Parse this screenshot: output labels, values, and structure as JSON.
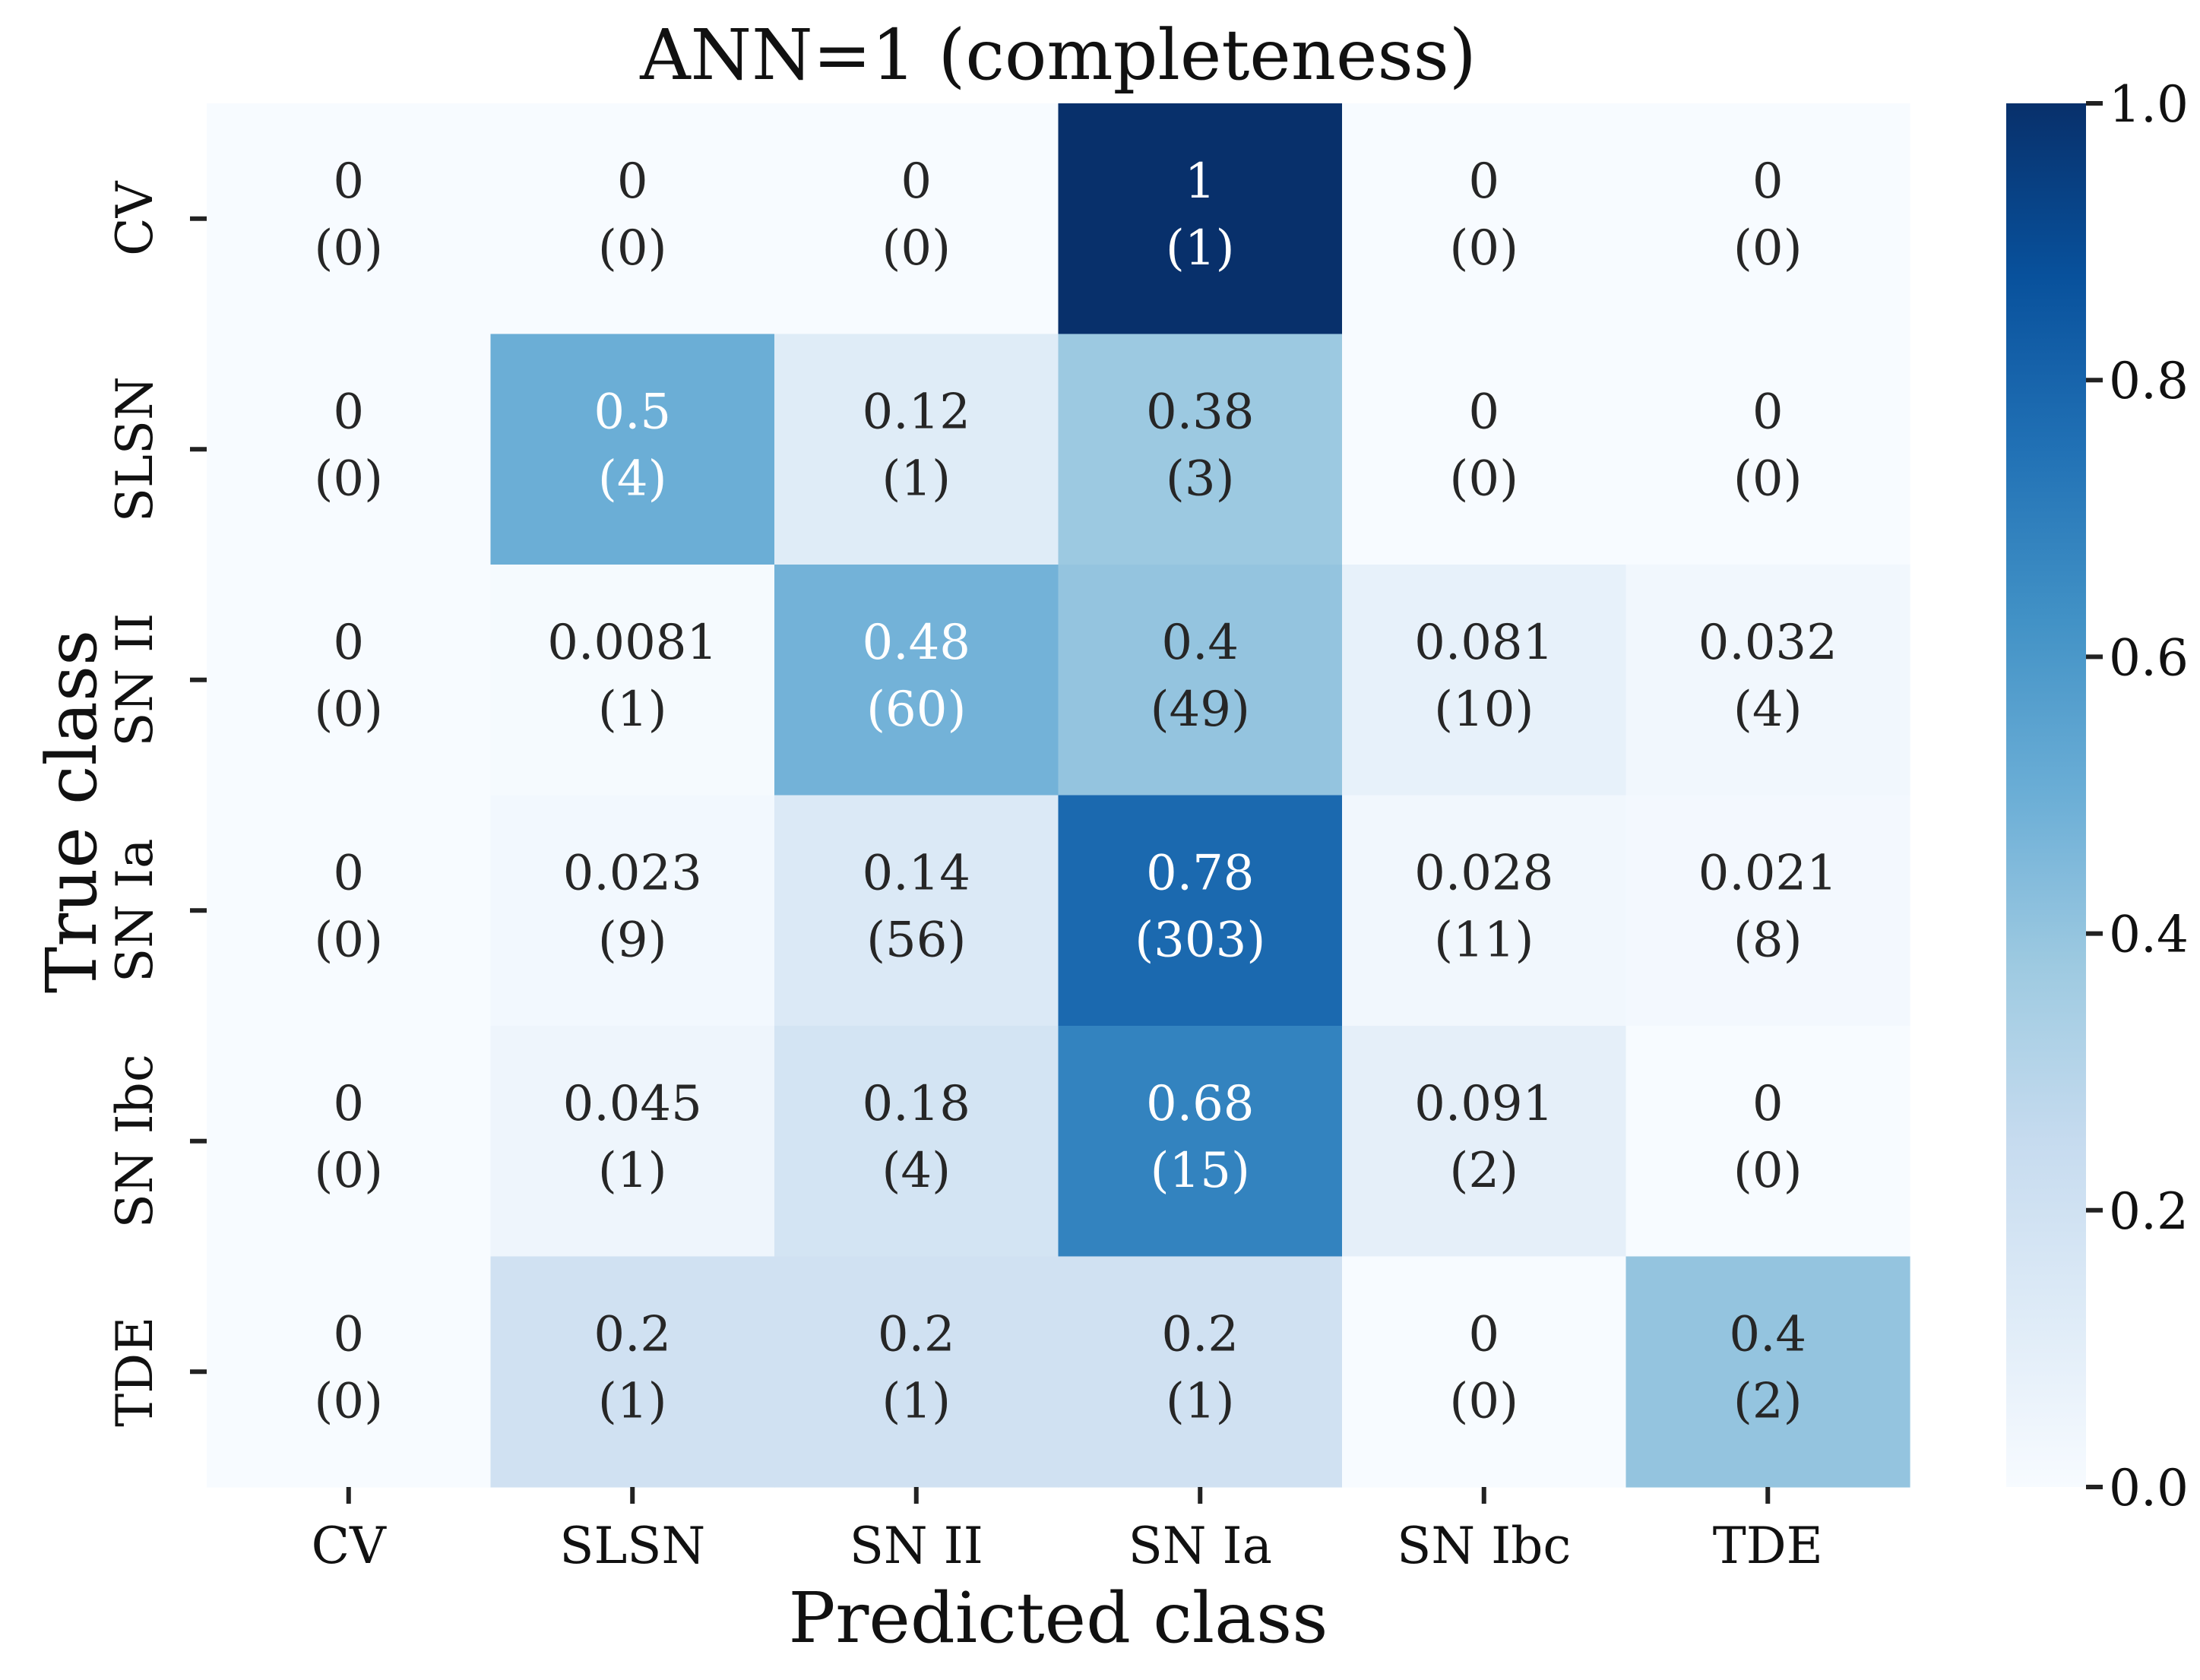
{
  "chart_data": {
    "type": "heatmap",
    "title": "ANN=1 (completeness)",
    "xlabel": "Predicted class",
    "ylabel": "True class",
    "x_categories": [
      "CV",
      "SLSN",
      "SN II",
      "SN Ia",
      "SN Ibc",
      "TDE"
    ],
    "y_categories": [
      "CV",
      "SLSN",
      "SN II",
      "SN Ia",
      "SN Ibc",
      "TDE"
    ],
    "values": [
      [
        0,
        0,
        0,
        1,
        0,
        0
      ],
      [
        0,
        0.5,
        0.12,
        0.38,
        0,
        0
      ],
      [
        0,
        0.0081,
        0.48,
        0.4,
        0.081,
        0.032
      ],
      [
        0,
        0.023,
        0.14,
        0.78,
        0.028,
        0.021
      ],
      [
        0,
        0.045,
        0.18,
        0.68,
        0.091,
        0
      ],
      [
        0,
        0.2,
        0.2,
        0.2,
        0,
        0.4
      ]
    ],
    "value_labels": [
      [
        "0",
        "0",
        "0",
        "1",
        "0",
        "0"
      ],
      [
        "0",
        "0.5",
        "0.12",
        "0.38",
        "0",
        "0"
      ],
      [
        "0",
        "0.0081",
        "0.48",
        "0.4",
        "0.081",
        "0.032"
      ],
      [
        "0",
        "0.023",
        "0.14",
        "0.78",
        "0.028",
        "0.021"
      ],
      [
        "0",
        "0.045",
        "0.18",
        "0.68",
        "0.091",
        "0"
      ],
      [
        "0",
        "0.2",
        "0.2",
        "0.2",
        "0",
        "0.4"
      ]
    ],
    "count_labels": [
      [
        "(0)",
        "(0)",
        "(0)",
        "(1)",
        "(0)",
        "(0)"
      ],
      [
        "(0)",
        "(4)",
        "(1)",
        "(3)",
        "(0)",
        "(0)"
      ],
      [
        "(0)",
        "(1)",
        "(60)",
        "(49)",
        "(10)",
        "(4)"
      ],
      [
        "(0)",
        "(9)",
        "(56)",
        "(303)",
        "(11)",
        "(8)"
      ],
      [
        "(0)",
        "(1)",
        "(4)",
        "(15)",
        "(2)",
        "(0)"
      ],
      [
        "(0)",
        "(1)",
        "(1)",
        "(1)",
        "(0)",
        "(2)"
      ]
    ],
    "colorbar": {
      "range": [
        0.0,
        1.0
      ],
      "ticks": [
        0.0,
        0.2,
        0.4,
        0.6,
        0.8,
        1.0
      ],
      "tick_labels": [
        "0.0",
        "0.2",
        "0.4",
        "0.6",
        "0.8",
        "1.0"
      ],
      "colormap": "Blues"
    }
  }
}
